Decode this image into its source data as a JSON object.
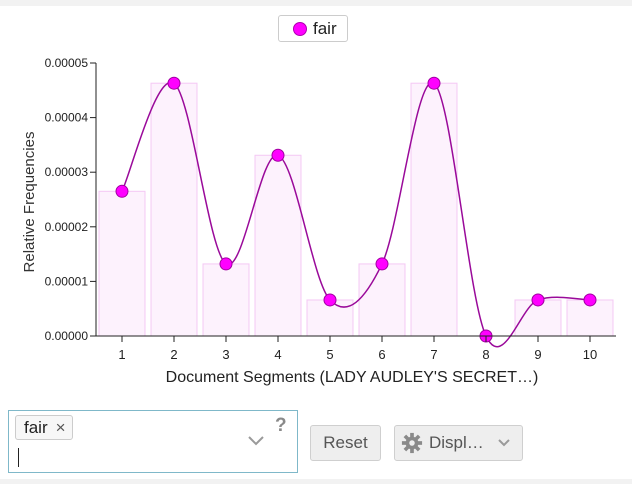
{
  "legend": {
    "label": "fair",
    "color": "#ff00ff"
  },
  "chart_data": {
    "type": "bar",
    "overlay": "smoothed-line-with-points",
    "categories": [
      "1",
      "2",
      "3",
      "4",
      "5",
      "6",
      "7",
      "8",
      "9",
      "10"
    ],
    "series": [
      {
        "name": "fair",
        "values": [
          2.65e-05,
          4.63e-05,
          1.32e-05,
          3.31e-05,
          6.6e-06,
          1.32e-05,
          4.63e-05,
          0.0,
          6.6e-06,
          6.6e-06
        ]
      }
    ],
    "ylim": [
      0,
      5e-05
    ],
    "yticks": [
      "0.00000",
      "0.00001",
      "0.00002",
      "0.00003",
      "0.00004",
      "0.00005"
    ],
    "xlabel": "Document Segments (LADY AUDLEY'S SECRET…)",
    "ylabel": "Relative Frequencies",
    "grid": false,
    "legend_position": "top-center",
    "colors": {
      "point": "#ff00ff",
      "line": "#9a0a9a",
      "bar_fill": "#fdf2fd",
      "bar_stroke": "#f4c8f4"
    }
  },
  "controls": {
    "term_chip": "fair",
    "chip_remove": "×",
    "help": "?",
    "reset_label": "Reset",
    "display_label": "Displ…"
  }
}
